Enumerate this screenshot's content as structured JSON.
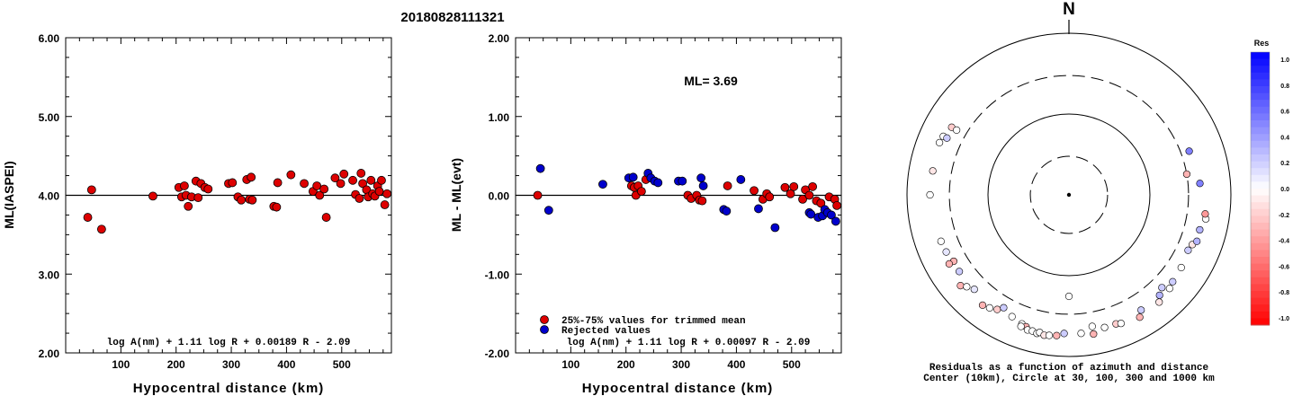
{
  "header": {
    "title": "20180828111321"
  },
  "chart_data": [
    {
      "type": "scatter",
      "ylabel": "ML(IASPEI)",
      "xlabel": "Hypocentral distance (km)",
      "xlim": [
        0,
        590
      ],
      "ylim": [
        2.0,
        6.0
      ],
      "xticks": [
        100,
        200,
        300,
        400,
        500
      ],
      "yticks": [
        2.0,
        3.0,
        4.0,
        5.0,
        6.0
      ],
      "ytick_labels": [
        "2.00",
        "3.00",
        "4.00",
        "5.00",
        "6.00"
      ],
      "reference_line_y": 4.0,
      "formula": "log A(nm) + 1.11 log R + 0.00189 R - 2.09",
      "points": [
        [
          40,
          3.72
        ],
        [
          47,
          4.07
        ],
        [
          65,
          3.57
        ],
        [
          158,
          3.99
        ],
        [
          205,
          4.1
        ],
        [
          210,
          3.98
        ],
        [
          215,
          4.12
        ],
        [
          218,
          4.0
        ],
        [
          222,
          3.86
        ],
        [
          228,
          3.98
        ],
        [
          236,
          4.18
        ],
        [
          240,
          3.97
        ],
        [
          245,
          4.15
        ],
        [
          252,
          4.1
        ],
        [
          258,
          4.08
        ],
        [
          295,
          4.15
        ],
        [
          302,
          4.16
        ],
        [
          312,
          3.98
        ],
        [
          318,
          3.94
        ],
        [
          328,
          4.2
        ],
        [
          333,
          3.95
        ],
        [
          336,
          4.23
        ],
        [
          338,
          3.94
        ],
        [
          377,
          3.86
        ],
        [
          382,
          3.85
        ],
        [
          384,
          4.16
        ],
        [
          408,
          4.26
        ],
        [
          432,
          4.15
        ],
        [
          448,
          4.05
        ],
        [
          455,
          4.12
        ],
        [
          460,
          4.0
        ],
        [
          468,
          4.08
        ],
        [
          472,
          3.72
        ],
        [
          488,
          4.22
        ],
        [
          498,
          4.15
        ],
        [
          504,
          4.27
        ],
        [
          520,
          4.19
        ],
        [
          525,
          4.01
        ],
        [
          532,
          3.96
        ],
        [
          535,
          4.28
        ],
        [
          538,
          4.15
        ],
        [
          545,
          4.07
        ],
        [
          548,
          3.98
        ],
        [
          553,
          4.19
        ],
        [
          556,
          4.02
        ],
        [
          560,
          3.99
        ],
        [
          565,
          4.12
        ],
        [
          568,
          4.05
        ],
        [
          572,
          4.19
        ],
        [
          578,
          3.88
        ],
        [
          582,
          4.02
        ]
      ]
    },
    {
      "type": "scatter",
      "ylabel": "ML - ML(evt)",
      "xlabel": "Hypocentral distance (km)",
      "xlim": [
        0,
        590
      ],
      "ylim": [
        -2.0,
        2.0
      ],
      "xticks": [
        100,
        200,
        300,
        400,
        500
      ],
      "yticks": [
        -2.0,
        -1.0,
        0.0,
        1.0,
        2.0
      ],
      "ytick_labels": [
        "-2.00",
        "-1.00",
        "0.00",
        "1.00",
        "2.00"
      ],
      "reference_line_y": 0.0,
      "ml_label": "ML= 3.69",
      "legend": [
        "25%-75% values for trimmed mean",
        "Rejected values"
      ],
      "formula": "log A(nm) + 1.11 log R + 0.00097 R - 2.09",
      "colors": {
        "trimmed": "#dd0000",
        "rejected": "#0000cc"
      },
      "trimmed_points": [
        [
          40,
          0.0
        ],
        [
          210,
          0.12
        ],
        [
          215,
          0.1
        ],
        [
          218,
          0.0
        ],
        [
          222,
          0.12
        ],
        [
          228,
          0.05
        ],
        [
          236,
          0.2
        ],
        [
          312,
          0.0
        ],
        [
          318,
          -0.04
        ],
        [
          328,
          0.0
        ],
        [
          333,
          -0.06
        ],
        [
          338,
          -0.07
        ],
        [
          384,
          0.12
        ],
        [
          432,
          0.06
        ],
        [
          448,
          -0.05
        ],
        [
          455,
          0.02
        ],
        [
          460,
          -0.02
        ],
        [
          488,
          0.1
        ],
        [
          498,
          0.02
        ],
        [
          504,
          0.11
        ],
        [
          520,
          -0.05
        ],
        [
          525,
          0.07
        ],
        [
          532,
          0.0
        ],
        [
          538,
          0.11
        ],
        [
          545,
          -0.07
        ],
        [
          553,
          -0.1
        ],
        [
          568,
          -0.02
        ],
        [
          578,
          -0.05
        ],
        [
          582,
          -0.13
        ]
      ],
      "rejected_points": [
        [
          45,
          0.34
        ],
        [
          60,
          -0.19
        ],
        [
          158,
          0.14
        ],
        [
          205,
          0.22
        ],
        [
          213,
          0.23
        ],
        [
          240,
          0.28
        ],
        [
          245,
          0.22
        ],
        [
          252,
          0.18
        ],
        [
          258,
          0.16
        ],
        [
          295,
          0.18
        ],
        [
          302,
          0.18
        ],
        [
          336,
          0.22
        ],
        [
          340,
          0.12
        ],
        [
          377,
          -0.18
        ],
        [
          382,
          -0.2
        ],
        [
          408,
          0.2
        ],
        [
          440,
          -0.17
        ],
        [
          470,
          -0.41
        ],
        [
          532,
          -0.22
        ],
        [
          535,
          -0.24
        ],
        [
          548,
          -0.28
        ],
        [
          556,
          -0.26
        ],
        [
          560,
          -0.18
        ],
        [
          565,
          -0.22
        ],
        [
          572,
          -0.25
        ],
        [
          580,
          -0.33
        ]
      ]
    },
    {
      "type": "scatter",
      "subtype": "polar",
      "north_label": "N",
      "caption_line1": "Residuals as a function of azimuth and distance",
      "caption_line2": "Center (10km), Circle at 30, 100, 300 and 1000 km",
      "circles_km": [
        30,
        100,
        300,
        1000
      ],
      "dashed_circles_km": [
        30,
        300
      ],
      "colorbar": {
        "title": "Res",
        "min": -1.0,
        "max": 1.0,
        "tick_labels": [
          "1.0",
          "0.8",
          "0.6",
          "0.4",
          "0.2",
          "0.0",
          "-0.2",
          "-0.4",
          "-0.6",
          "-0.8",
          "-1.0"
        ]
      },
      "stations": [
        [
          180,
          180,
          0.0
        ],
        [
          70,
          380,
          0.5
        ],
        [
          300,
          470,
          -0.2
        ],
        [
          295,
          515,
          0.0
        ],
        [
          300,
          400,
          0.0
        ],
        [
          295,
          460,
          0.2
        ],
        [
          292,
          530,
          0.0
        ],
        [
          280,
          510,
          -0.1
        ],
        [
          270,
          520,
          0.0
        ],
        [
          240,
          440,
          -0.3
        ],
        [
          245,
          470,
          0.1
        ],
        [
          235,
          450,
          0.2
        ],
        [
          240,
          510,
          -0.3
        ],
        [
          250,
          480,
          0.0
        ],
        [
          230,
          560,
          -0.3
        ],
        [
          228,
          500,
          0.0
        ],
        [
          225,
          450,
          0.1
        ],
        [
          218,
          540,
          -0.3
        ],
        [
          215,
          510,
          0.0
        ],
        [
          212,
          470,
          -0.2
        ],
        [
          205,
          460,
          0.0
        ],
        [
          210,
          410,
          0.2
        ],
        [
          200,
          500,
          0.0
        ],
        [
          198,
          520,
          -0.3
        ],
        [
          200,
          540,
          0.0
        ],
        [
          197,
          560,
          0.0
        ],
        [
          195,
          555,
          0.0
        ],
        [
          193,
          575,
          0.0
        ],
        [
          192,
          550,
          0.0
        ],
        [
          190,
          580,
          -0.1
        ],
        [
          188,
          570,
          0.0
        ],
        [
          185,
          560,
          -0.3
        ],
        [
          182,
          520,
          0.2
        ],
        [
          175,
          525,
          0.0
        ],
        [
          170,
          450,
          0.0
        ],
        [
          170,
          560,
          -0.3
        ],
        [
          165,
          500,
          0.0
        ],
        [
          160,
          500,
          -0.2
        ],
        [
          158,
          520,
          0.0
        ],
        [
          150,
          560,
          -0.3
        ],
        [
          148,
          480,
          0.2
        ],
        [
          140,
          540,
          -0.1
        ],
        [
          138,
          470,
          0.3
        ],
        [
          135,
          420,
          0.2
        ],
        [
          133,
          500,
          0.0
        ],
        [
          130,
          470,
          0.2
        ],
        [
          123,
          450,
          0.0
        ],
        [
          115,
          420,
          0.2
        ],
        [
          112,
          440,
          -0.1
        ],
        [
          105,
          470,
          0.3
        ],
        [
          110,
          480,
          0.3
        ],
        [
          100,
          520,
          0.0
        ],
        [
          98,
          500,
          -0.4
        ],
        [
          85,
          420,
          0.5
        ],
        [
          80,
          300,
          -0.3
        ]
      ]
    }
  ]
}
